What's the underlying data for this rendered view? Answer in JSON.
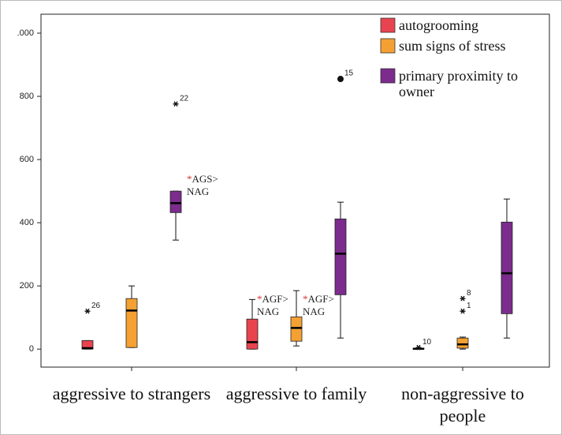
{
  "chart_data": {
    "type": "box",
    "categories": [
      "aggressive to strangers",
      "aggressive to family",
      "non-aggressive to people"
    ],
    "ylim": [
      -57,
      1060
    ],
    "yticks": [
      0,
      200,
      400,
      600,
      800,
      {
        "value": 1000,
        "label": ".000"
      }
    ],
    "series": [
      {
        "name": "autogrooming",
        "color": "#e8444f",
        "min": [
          0,
          0,
          0
        ],
        "q1": [
          0,
          0,
          0
        ],
        "median": [
          3,
          22,
          1
        ],
        "q3": [
          27,
          95,
          3
        ],
        "max": [
          27,
          157,
          3
        ],
        "outliers": [
          [
            {
              "value": 120,
              "label": "26",
              "extreme": false
            }
          ],
          [],
          [
            {
              "value": 5,
              "label": "10",
              "extreme": false
            }
          ]
        ]
      },
      {
        "name": "sum signs of stress",
        "color": "#f5a033",
        "min": [
          5,
          10,
          0
        ],
        "q1": [
          5,
          25,
          3
        ],
        "median": [
          122,
          67,
          15
        ],
        "q3": [
          160,
          102,
          35
        ],
        "max": [
          200,
          185,
          38
        ],
        "outliers": [
          [],
          [],
          [
            {
              "value": 160,
              "label": "8",
              "extreme": false
            },
            {
              "value": 120,
              "label": "1",
              "extreme": false
            }
          ]
        ]
      },
      {
        "name": "primary proximity to owner",
        "color": "#7b2c8c",
        "min": [
          345,
          35,
          35
        ],
        "q1": [
          432,
          172,
          112
        ],
        "median": [
          462,
          302,
          240
        ],
        "q3": [
          500,
          412,
          402
        ],
        "max": [
          500,
          465,
          475
        ],
        "outliers": [
          [
            {
              "value": 776,
              "label": "22",
              "extreme": false
            }
          ],
          [
            {
              "value": 855,
              "label": "15",
              "extreme": true
            }
          ],
          []
        ]
      }
    ],
    "annotation_marker_color": "#e03030",
    "annotations": [
      {
        "marker": "*",
        "lines": [
          "AGS>",
          "NAG"
        ]
      },
      {
        "marker": "*",
        "lines": [
          "AGF>",
          "NAG"
        ]
      },
      {
        "marker": "*",
        "lines": [
          "AGF>",
          "NAG"
        ]
      }
    ]
  }
}
